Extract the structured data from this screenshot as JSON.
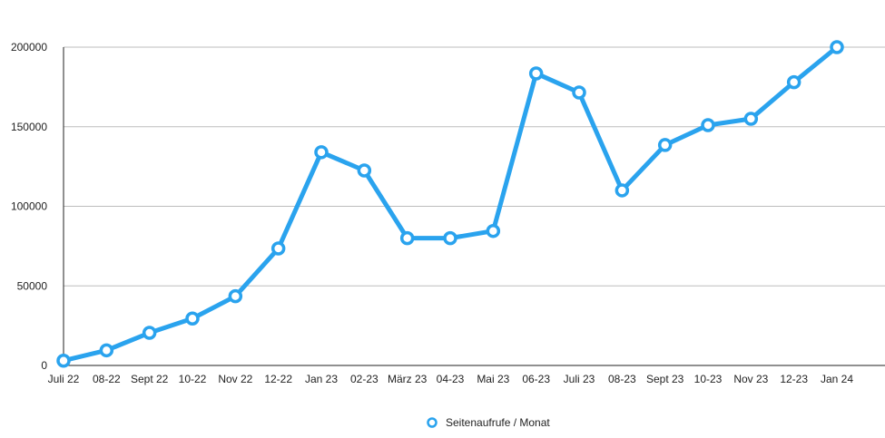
{
  "chart_data": {
    "type": "line",
    "title": "",
    "xlabel": "",
    "ylabel": "",
    "categories": [
      "Juli 22",
      "08-22",
      "Sept 22",
      "10-22",
      "Nov 22",
      "12-22",
      "Jan 23",
      "02-23",
      "März 23",
      "04-23",
      "Mai 23",
      "06-23",
      "Juli 23",
      "08-23",
      "Sept 23",
      "10-23",
      "Nov 23",
      "12-23",
      "Jan 24"
    ],
    "series": [
      {
        "name": "Seitenaufrufe / Monat",
        "values": [
          3000,
          9500,
          20500,
          29500,
          43500,
          73500,
          134000,
          122500,
          80000,
          80000,
          84500,
          183500,
          171500,
          110000,
          138500,
          151000,
          155000,
          178000,
          200000
        ]
      }
    ],
    "ylim": [
      0,
      200000
    ],
    "yticks": [
      0,
      50000,
      100000,
      150000,
      200000
    ],
    "ytick_labels": [
      "0",
      "50000",
      "100000",
      "150000",
      "200000"
    ],
    "grid": "horizontal",
    "legend_position": "bottom-center",
    "colors": {
      "series": "#2aa3ee",
      "grid": "#bdbdbd",
      "axis": "#222222",
      "marker_fill": "#ffffff"
    }
  }
}
